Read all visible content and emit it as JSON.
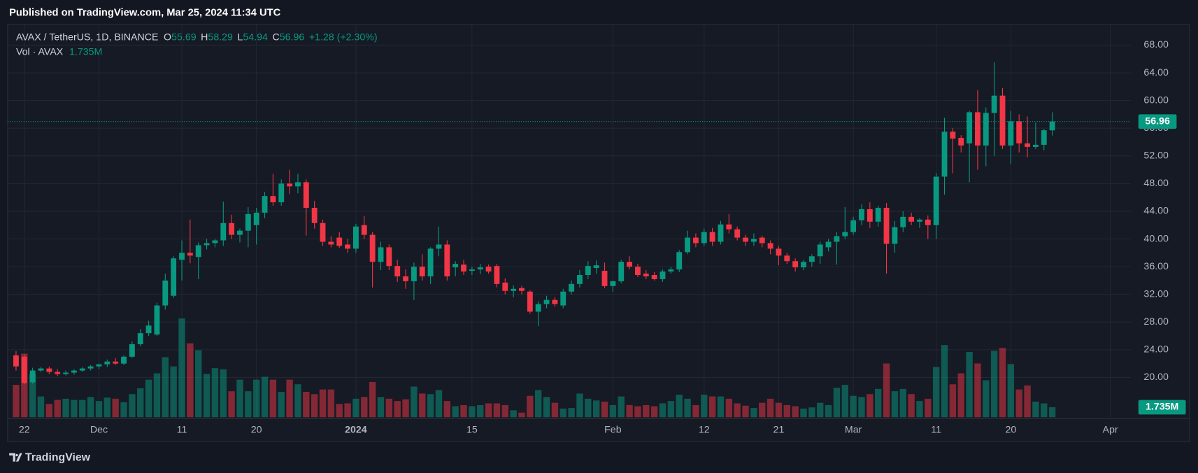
{
  "published": "Published on TradingView.com, Mar 25, 2024 11:34 UTC",
  "brand": "TradingView",
  "chart_data": {
    "type": "candlestick",
    "symbol": "AVAX / TetherUS, 1D, BINANCE",
    "ohlc_letters": [
      "O",
      "H",
      "L",
      "C"
    ],
    "change_text": "+1.28 (+2.30%)",
    "volume_title": "Vol · AVAX",
    "last_volume_label": "1.735M",
    "up_color": "#089981",
    "down_color": "#f23645",
    "grid": true,
    "ylim": [
      14.26,
      70.98
    ],
    "yticks": [
      {
        "value": 20,
        "label": "20.00"
      },
      {
        "value": 24,
        "label": "24.00"
      },
      {
        "value": 28,
        "label": "28.00"
      },
      {
        "value": 32,
        "label": "32.00"
      },
      {
        "value": 36,
        "label": "36.00"
      },
      {
        "value": 40,
        "label": "40.00"
      },
      {
        "value": 44,
        "label": "44.00"
      },
      {
        "value": 48,
        "label": "48.00"
      },
      {
        "value": 52,
        "label": "52.00"
      },
      {
        "value": 56,
        "label": "56.00"
      },
      {
        "value": 60,
        "label": "60.00"
      },
      {
        "value": 64,
        "label": "64.00"
      },
      {
        "value": 68,
        "label": "68.00"
      }
    ],
    "volume_ylim": [
      0,
      68
    ],
    "categories": [
      null,
      "22",
      null,
      null,
      null,
      null,
      null,
      null,
      null,
      null,
      "Dec",
      null,
      null,
      null,
      null,
      null,
      null,
      null,
      null,
      null,
      "11",
      null,
      null,
      null,
      null,
      null,
      null,
      null,
      null,
      "20",
      null,
      null,
      null,
      null,
      null,
      null,
      null,
      null,
      null,
      null,
      null,
      "2024",
      null,
      null,
      null,
      null,
      null,
      null,
      null,
      null,
      null,
      null,
      null,
      null,
      null,
      "15",
      null,
      null,
      null,
      null,
      null,
      null,
      null,
      null,
      null,
      null,
      null,
      null,
      null,
      null,
      null,
      null,
      "Feb",
      null,
      null,
      null,
      null,
      null,
      null,
      null,
      null,
      null,
      null,
      "12",
      null,
      null,
      null,
      null,
      null,
      null,
      null,
      null,
      "21",
      null,
      null,
      null,
      null,
      null,
      null,
      null,
      null,
      "Mar",
      null,
      null,
      null,
      null,
      null,
      null,
      null,
      null,
      null,
      "11",
      null,
      null,
      null,
      null,
      null,
      null,
      null,
      null,
      "20",
      null,
      null,
      null,
      null,
      null,
      null,
      null,
      null,
      null,
      null,
      null,
      "Apr"
    ],
    "bold_category": "2024",
    "open": [
      23.2,
      23.0,
      19.3,
      21.0,
      21.3,
      20.8,
      20.5,
      20.7,
      21.0,
      21.3,
      21.6,
      21.9,
      22.3,
      22.0,
      23.0,
      24.8,
      26.4,
      26.2,
      30.4,
      31.8,
      37.0,
      38.0,
      37.4,
      39.1,
      39.4,
      39.8,
      42.3,
      40.6,
      41.2,
      42.0,
      43.8,
      46.2,
      45.3,
      48.0,
      47.6,
      48.2,
      44.5,
      42.3,
      39.6,
      40.2,
      39.2,
      38.6,
      42.0,
      40.6,
      36.7,
      38.8,
      36.1,
      34.6,
      33.9,
      36.0,
      34.6,
      38.6,
      39.2,
      35.9,
      36.3,
      35.4,
      35.6,
      36.0,
      36.1,
      33.7,
      32.5,
      32.9,
      32.4,
      29.5,
      30.6,
      31.2,
      30.4,
      32.4,
      33.5,
      34.8,
      35.8,
      35.4,
      33.2,
      33.9,
      36.7,
      36.0,
      35.0,
      34.8,
      34.2,
      35.3,
      35.6,
      38.1,
      40.2,
      39.4,
      41.0,
      39.6,
      42.1,
      41.4,
      40.2,
      39.6,
      40.2,
      39.4,
      38.6,
      37.6,
      36.8,
      35.9,
      36.7,
      37.5,
      38.8,
      39.6,
      40.4,
      41.0,
      42.7,
      44.3,
      42.5,
      44.5,
      39.3,
      41.7,
      43.2,
      42.5,
      42.8,
      42.0,
      49.0,
      55.5,
      54.6,
      53.8,
      58.3,
      53.5,
      58.2,
      60.7,
      53.5,
      57.0,
      53.8,
      53.3,
      53.6,
      55.69,
      null,
      null,
      null,
      null,
      null,
      null,
      null
    ],
    "high": [
      23.8,
      23.3,
      21.4,
      21.5,
      21.6,
      21.2,
      21.0,
      21.2,
      21.5,
      21.8,
      22.0,
      22.6,
      22.8,
      23.2,
      25.2,
      27.0,
      28.2,
      30.8,
      35.0,
      37.5,
      39.8,
      42.8,
      39.5,
      40.0,
      40.0,
      45.4,
      43.5,
      41.5,
      44.6,
      44.5,
      46.8,
      49.4,
      48.6,
      50.0,
      49.4,
      48.6,
      45.5,
      42.8,
      40.4,
      41.0,
      40.0,
      42.2,
      43.3,
      41.0,
      39.6,
      39.2,
      37.0,
      35.6,
      36.6,
      37.8,
      38.8,
      41.8,
      39.8,
      36.8,
      37.0,
      36.0,
      36.4,
      36.3,
      36.4,
      34.3,
      33.3,
      33.2,
      32.6,
      31.0,
      31.8,
      31.6,
      32.8,
      34.0,
      35.5,
      36.8,
      36.9,
      36.6,
      34.0,
      37.0,
      37.5,
      36.4,
      35.5,
      35.2,
      35.6,
      36.0,
      38.4,
      41.2,
      40.8,
      41.5,
      41.6,
      42.6,
      43.6,
      41.8,
      40.6,
      40.8,
      40.5,
      39.8,
      39.0,
      38.0,
      37.2,
      37.0,
      37.8,
      39.6,
      40.0,
      41.0,
      44.6,
      43.2,
      45.0,
      45.3,
      44.8,
      45.2,
      42.6,
      44.0,
      43.8,
      43.0,
      43.4,
      49.5,
      57.5,
      56.0,
      55.0,
      58.5,
      61.5,
      59.0,
      65.5,
      61.8,
      58.5,
      58.0,
      57.7,
      56.8,
      55.9,
      58.29,
      null,
      null,
      null,
      null,
      null,
      null,
      null
    ],
    "low": [
      21.0,
      19.0,
      19.1,
      20.8,
      20.5,
      20.2,
      20.3,
      20.4,
      20.8,
      21.0,
      21.2,
      21.5,
      21.8,
      21.8,
      22.8,
      24.5,
      26.0,
      26.0,
      29.8,
      31.5,
      34.0,
      36.5,
      34.2,
      38.5,
      38.8,
      39.0,
      40.0,
      39.5,
      38.8,
      39.2,
      43.0,
      44.8,
      44.8,
      46.5,
      46.6,
      40.5,
      41.5,
      39.0,
      38.8,
      38.7,
      38.0,
      38.0,
      40.0,
      33.0,
      35.5,
      35.5,
      33.8,
      32.8,
      31.2,
      34.0,
      33.5,
      37.5,
      34.0,
      34.6,
      34.8,
      34.8,
      34.9,
      35.0,
      33.0,
      32.0,
      31.6,
      32.0,
      29.2,
      27.4,
      30.0,
      30.2,
      30.0,
      32.0,
      33.0,
      34.2,
      35.0,
      32.9,
      32.4,
      33.6,
      35.6,
      34.5,
      34.2,
      34.0,
      33.8,
      35.0,
      35.2,
      37.8,
      38.8,
      39.0,
      39.0,
      39.2,
      40.8,
      39.8,
      39.0,
      39.0,
      38.8,
      37.8,
      36.2,
      36.4,
      35.3,
      35.5,
      36.0,
      36.4,
      38.2,
      36.3,
      40.0,
      40.6,
      42.0,
      41.6,
      41.8,
      35.0,
      38.0,
      41.0,
      42.0,
      41.6,
      40.0,
      40.0,
      46.4,
      49.5,
      52.5,
      48.2,
      50.0,
      50.5,
      52.0,
      53.0,
      50.8,
      52.5,
      51.8,
      53.0,
      52.8,
      54.94,
      null,
      null,
      null,
      null,
      null,
      null,
      null
    ],
    "close": [
      21.6,
      19.2,
      21.0,
      21.3,
      20.8,
      20.5,
      20.7,
      21.0,
      21.3,
      21.6,
      21.9,
      22.3,
      22.0,
      23.0,
      24.8,
      26.4,
      27.5,
      30.4,
      34.0,
      37.2,
      38.0,
      37.6,
      39.1,
      39.4,
      39.8,
      42.3,
      40.6,
      41.2,
      43.6,
      43.8,
      46.2,
      45.3,
      48.0,
      47.6,
      48.2,
      44.5,
      42.3,
      39.6,
      39.2,
      39.0,
      38.6,
      41.8,
      40.6,
      36.7,
      38.8,
      36.1,
      34.6,
      33.9,
      36.0,
      34.6,
      38.6,
      39.2,
      34.6,
      36.4,
      35.3,
      35.6,
      35.9,
      35.3,
      33.5,
      32.5,
      32.8,
      32.5,
      29.5,
      30.6,
      31.2,
      30.6,
      32.4,
      33.5,
      34.8,
      36.1,
      36.2,
      33.2,
      33.9,
      36.7,
      36.0,
      34.8,
      34.6,
      34.2,
      35.3,
      35.6,
      38.1,
      40.2,
      39.4,
      41.0,
      39.6,
      42.1,
      41.4,
      40.2,
      39.6,
      40.0,
      39.4,
      38.6,
      37.6,
      36.8,
      35.9,
      36.7,
      37.5,
      39.2,
      39.6,
      40.4,
      41.0,
      42.7,
      44.3,
      42.5,
      44.5,
      39.3,
      41.7,
      43.2,
      42.5,
      42.8,
      42.0,
      49.0,
      55.5,
      54.5,
      53.5,
      58.3,
      53.5,
      58.2,
      60.7,
      53.5,
      57.0,
      53.8,
      53.3,
      53.6,
      55.7,
      56.96,
      null,
      null,
      null,
      null,
      null,
      null,
      null
    ],
    "volume": [
      5.6,
      11.0,
      7.5,
      3.6,
      2.3,
      3.0,
      3.2,
      3.0,
      3.0,
      3.5,
      2.8,
      3.4,
      3.2,
      2.6,
      4.0,
      5.0,
      6.5,
      7.6,
      10.4,
      8.8,
      17.1,
      12.8,
      11.6,
      7.5,
      8.5,
      8.3,
      4.5,
      6.5,
      4.5,
      6.5,
      7.0,
      6.5,
      4.4,
      6.5,
      5.7,
      4.4,
      4.0,
      4.8,
      4.8,
      2.3,
      2.4,
      3.2,
      3.5,
      6.1,
      3.5,
      3.2,
      2.8,
      3.1,
      5.3,
      4.1,
      4.0,
      4.7,
      2.8,
      1.9,
      2.1,
      1.9,
      2.1,
      2.4,
      2.4,
      2.1,
      1.2,
      0.8,
      3.7,
      4.7,
      3.5,
      2.5,
      1.5,
      1.6,
      4.1,
      3.2,
      2.9,
      2.7,
      2.1,
      3.6,
      2.1,
      1.9,
      2.1,
      1.9,
      2.4,
      2.8,
      3.9,
      3.2,
      2.1,
      3.9,
      3.6,
      3.6,
      3.2,
      2.4,
      2.0,
      1.6,
      2.5,
      3.2,
      2.5,
      2.1,
      1.9,
      1.5,
      1.7,
      2.5,
      2.1,
      5.1,
      5.6,
      3.7,
      3.5,
      4.0,
      4.9,
      9.3,
      4.5,
      4.9,
      4.0,
      2.8,
      3.2,
      8.7,
      12.5,
      5.7,
      7.6,
      11.3,
      9.3,
      6.4,
      11.5,
      12.0,
      9.2,
      4.8,
      5.5,
      2.7,
      2.4,
      1.735,
      null,
      null,
      null,
      null,
      null,
      null,
      null
    ]
  }
}
